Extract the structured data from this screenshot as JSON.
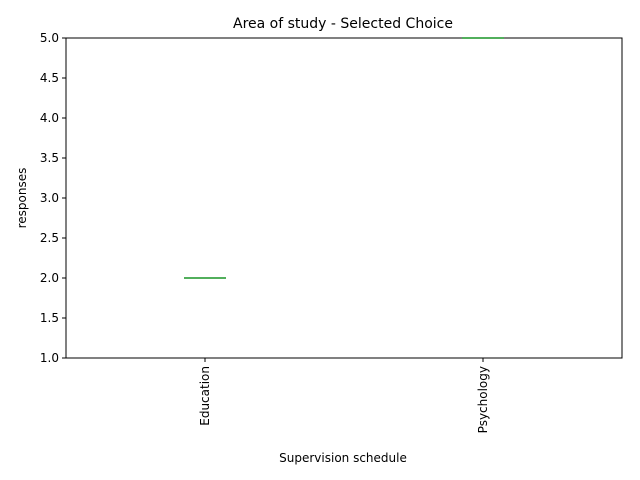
{
  "chart_data": {
    "type": "box",
    "title": "Area of study - Selected Choice",
    "xlabel": "Supervision schedule",
    "ylabel": "responses",
    "categories": [
      "Education",
      "Psychology"
    ],
    "values": [
      2,
      5
    ],
    "ylim": [
      1,
      5
    ],
    "yticks": [
      "1.0",
      "1.5",
      "2.0",
      "2.5",
      "3.0",
      "3.5",
      "4.0",
      "4.5",
      "5.0"
    ],
    "grid": false,
    "median_color": "#2ca02c",
    "box_color": "#1f77b4"
  }
}
